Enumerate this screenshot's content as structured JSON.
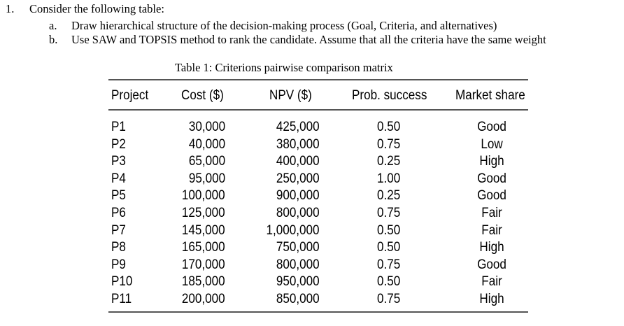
{
  "question": {
    "number": "1.",
    "intro": "Consider the following table:",
    "items": [
      {
        "letter": "a.",
        "text": "Draw hierarchical structure of the decision-making process (Goal, Criteria, and alternatives)"
      },
      {
        "letter": "b.",
        "text": "Use SAW and TOPSIS method to rank the candidate. Assume that all the criteria have the same weight"
      }
    ]
  },
  "table": {
    "caption": "Table 1: Criterions pairwise comparison matrix",
    "headers": {
      "project": "Project",
      "cost": "Cost ($)",
      "npv": "NPV ($)",
      "prob": "Prob. success",
      "share": "Market share"
    },
    "rows": [
      {
        "project": "P1",
        "cost": "30,000",
        "npv": "425,000",
        "prob": "0.50",
        "share": "Good"
      },
      {
        "project": "P2",
        "cost": "40,000",
        "npv": "380,000",
        "prob": "0.75",
        "share": "Low"
      },
      {
        "project": "P3",
        "cost": "65,000",
        "npv": "400,000",
        "prob": "0.25",
        "share": "High"
      },
      {
        "project": "P4",
        "cost": "95,000",
        "npv": "250,000",
        "prob": "1.00",
        "share": "Good"
      },
      {
        "project": "P5",
        "cost": "100,000",
        "npv": "900,000",
        "prob": "0.25",
        "share": "Good"
      },
      {
        "project": "P6",
        "cost": "125,000",
        "npv": "800,000",
        "prob": "0.75",
        "share": "Fair"
      },
      {
        "project": "P7",
        "cost": "145,000",
        "npv": "1,000,000",
        "prob": "0.50",
        "share": "Fair"
      },
      {
        "project": "P8",
        "cost": "165,000",
        "npv": "750,000",
        "prob": "0.50",
        "share": "High"
      },
      {
        "project": "P9",
        "cost": "170,000",
        "npv": "800,000",
        "prob": "0.75",
        "share": "Good"
      },
      {
        "project": "P10",
        "cost": "185,000",
        "npv": "950,000",
        "prob": "0.50",
        "share": "Fair"
      },
      {
        "project": "P11",
        "cost": "200,000",
        "npv": "850,000",
        "prob": "0.75",
        "share": "High"
      }
    ]
  }
}
